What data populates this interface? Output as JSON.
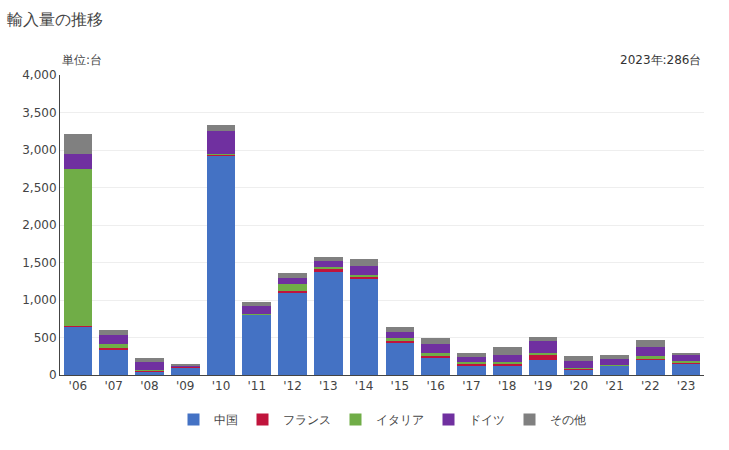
{
  "chart_data": {
    "type": "bar",
    "stacked": true,
    "title": "輸入量の推移",
    "ylabel": "単位:台",
    "annotations": [
      "2023年:286台"
    ],
    "categories": [
      "'06",
      "'07",
      "'08",
      "'09",
      "'10",
      "'11",
      "'12",
      "'13",
      "'14",
      "'15",
      "'16",
      "'17",
      "'18",
      "'19",
      "'20",
      "'21",
      "'22",
      "'23"
    ],
    "series": [
      {
        "name": "中国",
        "color": "#4472c4",
        "values": [
          640,
          340,
          50,
          100,
          2930,
          800,
          1100,
          1380,
          1290,
          430,
          230,
          130,
          130,
          200,
          70,
          120,
          200,
          150
        ]
      },
      {
        "name": "フランス",
        "color": "#c0143c",
        "values": [
          10,
          20,
          10,
          10,
          10,
          10,
          20,
          30,
          20,
          30,
          30,
          20,
          20,
          70,
          10,
          10,
          20,
          20
        ]
      },
      {
        "name": "イタリア",
        "color": "#70ad47",
        "values": [
          2100,
          50,
          10,
          5,
          10,
          10,
          100,
          30,
          20,
          30,
          30,
          20,
          20,
          30,
          10,
          10,
          30,
          20
        ]
      },
      {
        "name": "ドイツ",
        "color": "#7030a0",
        "values": [
          200,
          130,
          100,
          15,
          310,
          100,
          80,
          80,
          130,
          80,
          130,
          70,
          100,
          150,
          100,
          80,
          130,
          80
        ]
      },
      {
        "name": "その他",
        "color": "#808080",
        "values": [
          260,
          60,
          60,
          20,
          80,
          50,
          60,
          60,
          90,
          70,
          80,
          60,
          100,
          60,
          60,
          50,
          90,
          16
        ]
      }
    ],
    "ylim": [
      0,
      4000
    ],
    "yticks": [
      0,
      500,
      {
        "value": 1000,
        "label": "1,000"
      },
      {
        "value": 1500,
        "label": "1,500"
      },
      {
        "value": 2000,
        "label": "2,000"
      },
      {
        "value": 2500,
        "label": "2,500"
      },
      {
        "value": 3000,
        "label": "3,000"
      },
      {
        "value": 3500,
        "label": "3,500"
      },
      {
        "value": 4000,
        "label": "4,000"
      }
    ],
    "grid": true,
    "legend": "bottom"
  }
}
